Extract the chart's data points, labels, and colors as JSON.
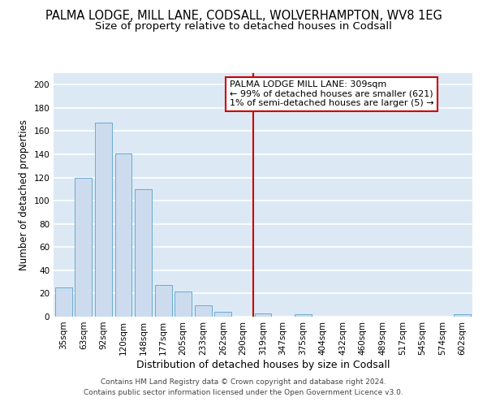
{
  "title": "PALMA LODGE, MILL LANE, CODSALL, WOLVERHAMPTON, WV8 1EG",
  "subtitle": "Size of property relative to detached houses in Codsall",
  "xlabel": "Distribution of detached houses by size in Codsall",
  "ylabel": "Number of detached properties",
  "bar_labels": [
    "35sqm",
    "63sqm",
    "92sqm",
    "120sqm",
    "148sqm",
    "177sqm",
    "205sqm",
    "233sqm",
    "262sqm",
    "290sqm",
    "319sqm",
    "347sqm",
    "375sqm",
    "404sqm",
    "432sqm",
    "460sqm",
    "489sqm",
    "517sqm",
    "545sqm",
    "574sqm",
    "602sqm"
  ],
  "bar_values": [
    25,
    120,
    167,
    141,
    110,
    27,
    22,
    10,
    4,
    0,
    3,
    0,
    2,
    0,
    0,
    0,
    0,
    0,
    0,
    0,
    2
  ],
  "bar_color": "#ccdcee",
  "bar_edge_color": "#6aaad4",
  "background_color": "#dce9f5",
  "grid_color": "#ffffff",
  "vline_color": "#cc0000",
  "ylim": [
    0,
    210
  ],
  "yticks": [
    0,
    20,
    40,
    60,
    80,
    100,
    120,
    140,
    160,
    180,
    200
  ],
  "annotation_title": "PALMA LODGE MILL LANE: 309sqm",
  "annotation_line1": "← 99% of detached houses are smaller (621)",
  "annotation_line2": "1% of semi-detached houses are larger (5) →",
  "annotation_box_color": "#ffffff",
  "annotation_border_color": "#cc0000",
  "footer_line1": "Contains HM Land Registry data © Crown copyright and database right 2024.",
  "footer_line2": "Contains public sector information licensed under the Open Government Licence v3.0.",
  "title_fontsize": 10.5,
  "subtitle_fontsize": 9.5,
  "axis_label_fontsize": 8.5,
  "tick_fontsize": 7.5,
  "annotation_fontsize": 8,
  "footer_fontsize": 6.5
}
